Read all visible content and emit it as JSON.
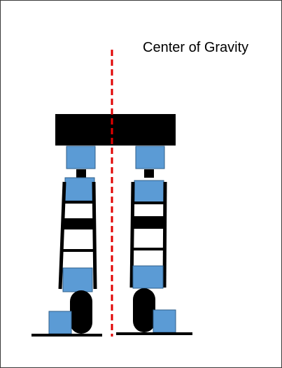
{
  "annotation": {
    "center_of_gravity_label": "Center of Gravity"
  },
  "colors": {
    "servo_blue": "#5b9bd5",
    "frame_black": "#000000",
    "cog_line_red": "#e00000",
    "background": "#ffffff"
  },
  "robot": {
    "legs": [
      "left-leg",
      "right-leg"
    ],
    "parts_per_leg": [
      "hip-servo",
      "hip-joint",
      "thigh-servo",
      "knee-bracket",
      "knee-link",
      "shin-servo",
      "ankle-wheel",
      "foot-servo"
    ]
  }
}
